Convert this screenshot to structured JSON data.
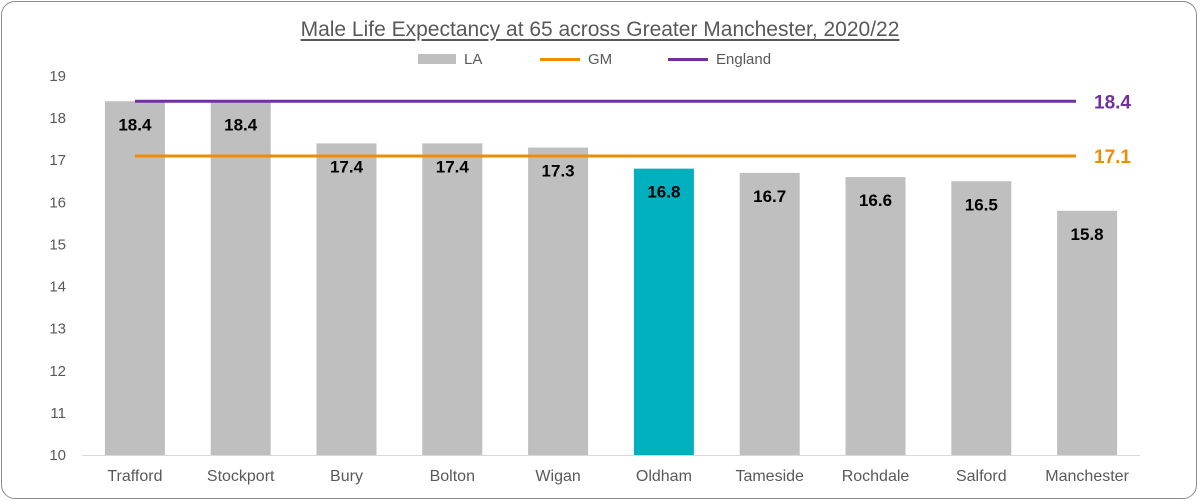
{
  "chart_data": {
    "type": "bar",
    "title": "Male Life Expectancy at 65 across Greater Manchester, 2020/22",
    "categories": [
      "Trafford",
      "Stockport",
      "Bury",
      "Bolton",
      "Wigan",
      "Oldham",
      "Tameside",
      "Rochdale",
      "Salford",
      "Manchester"
    ],
    "series": [
      {
        "name": "LA",
        "values": [
          18.4,
          18.4,
          17.4,
          17.4,
          17.3,
          16.8,
          16.7,
          16.6,
          16.5,
          15.8
        ],
        "color": "#bfbfbf",
        "highlight_color": "#00b0be",
        "highlight_category": "Oldham"
      }
    ],
    "reference_lines": [
      {
        "name": "GM",
        "value": 17.1,
        "label": "17.1",
        "color": "#f08c00"
      },
      {
        "name": "England",
        "value": 18.4,
        "label": "18.4",
        "color": "#7030a0"
      }
    ],
    "data_labels": [
      "18.4",
      "18.4",
      "17.4",
      "17.4",
      "17.3",
      "16.8",
      "16.7",
      "16.6",
      "16.5",
      "15.8"
    ],
    "ylim": [
      10,
      19
    ],
    "yticks": [
      "10",
      "11",
      "12",
      "13",
      "14",
      "15",
      "16",
      "17",
      "18",
      "19"
    ],
    "xlabel": "",
    "ylabel": "",
    "grid": false,
    "legend_position": "top"
  },
  "legend": {
    "la": "LA",
    "gm": "GM",
    "england": "England"
  }
}
